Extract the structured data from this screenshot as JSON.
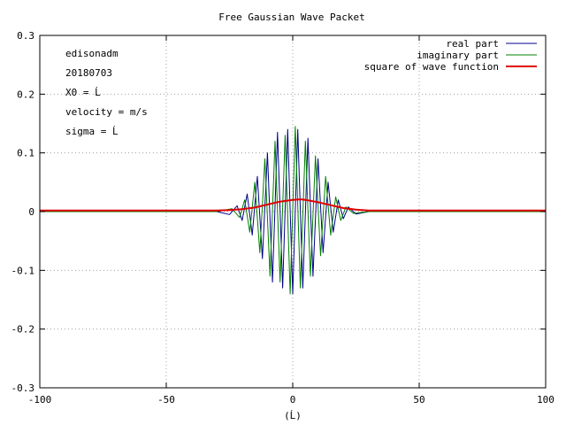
{
  "chart_data": {
    "type": "line",
    "title": "Free Gaussian Wave Packet",
    "xlabel": "(Ĺ)",
    "ylabel": "",
    "xlim": [
      -100,
      100
    ],
    "ylim": [
      -0.3,
      0.3
    ],
    "grid": true,
    "legend_position": "top-right",
    "x_ticks": [
      "-100",
      "-50",
      "0",
      "50",
      "100"
    ],
    "y_ticks": [
      "0.3",
      "0.2",
      "0.1",
      "0",
      "-0.1",
      "-0.2",
      "-0.3"
    ],
    "annotations": [
      "edisonadm",
      "20180703",
      "X0 =  Ĺ",
      "velocity =  m/s",
      "sigma =  Ĺ"
    ],
    "series": [
      {
        "name": "real part",
        "color": "#00008b",
        "x": [
          -100,
          -30,
          -25,
          -22,
          -20,
          -18,
          -16,
          -14,
          -12,
          -10,
          -8,
          -6,
          -4,
          -2,
          0,
          2,
          4,
          6,
          8,
          10,
          12,
          14,
          16,
          18,
          20,
          22,
          25,
          30,
          100
        ],
        "y": [
          0,
          0,
          -0.005,
          0.01,
          -0.015,
          0.03,
          -0.04,
          0.06,
          -0.08,
          0.1,
          -0.12,
          0.135,
          -0.13,
          0.14,
          -0.14,
          0.14,
          -0.13,
          0.125,
          -0.11,
          0.09,
          -0.07,
          0.05,
          -0.035,
          0.02,
          -0.012,
          0.008,
          -0.004,
          0,
          0
        ]
      },
      {
        "name": "imaginary part",
        "color": "#008000",
        "x": [
          -100,
          -30,
          -24,
          -21,
          -19,
          -17,
          -15,
          -13,
          -11,
          -9,
          -7,
          -5,
          -3,
          -1,
          1,
          3,
          5,
          7,
          9,
          11,
          13,
          15,
          17,
          19,
          21,
          24,
          30,
          100
        ],
        "y": [
          0,
          0,
          0.005,
          -0.01,
          0.02,
          -0.035,
          0.05,
          -0.07,
          0.09,
          -0.11,
          0.12,
          -0.12,
          0.13,
          -0.14,
          0.145,
          -0.13,
          0.12,
          -0.11,
          0.095,
          -0.075,
          0.06,
          -0.04,
          0.025,
          -0.015,
          0.008,
          -0.003,
          0,
          0
        ]
      },
      {
        "name": "square of wave function",
        "color": "#e00000",
        "x": [
          -100,
          -30,
          -25,
          -20,
          -15,
          -10,
          -5,
          0,
          3,
          5,
          10,
          15,
          20,
          25,
          30,
          100
        ],
        "y": [
          0.002,
          0.002,
          0.0025,
          0.004,
          0.007,
          0.012,
          0.017,
          0.02,
          0.021,
          0.02,
          0.016,
          0.011,
          0.006,
          0.0035,
          0.002,
          0.002
        ]
      }
    ]
  }
}
